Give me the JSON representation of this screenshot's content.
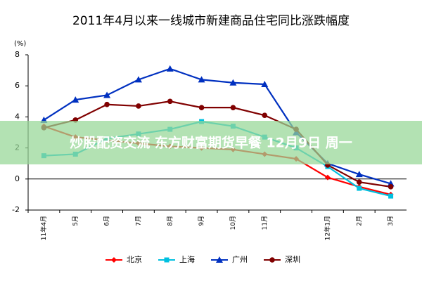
{
  "chart_data": {
    "type": "line",
    "title": "2011年4月以来一线城市新建商品住宅同比涨跌幅度",
    "ylabel": "(%)",
    "categories": [
      "11年4月",
      "5月",
      "6月",
      "7月",
      "8月",
      "9月",
      "10月",
      "11月",
      null,
      "12年1月",
      "2月",
      "3月"
    ],
    "series": [
      {
        "name": "北京",
        "color": "#ff0000",
        "marker": "diamond",
        "values": [
          3.4,
          2.7,
          2.5,
          2.3,
          2.1,
          2.0,
          1.9,
          1.6,
          1.3,
          0.1,
          -0.5,
          -1.0
        ]
      },
      {
        "name": "上海",
        "color": "#00c0e0",
        "marker": "square",
        "values": [
          1.5,
          1.6,
          2.6,
          2.9,
          3.2,
          3.7,
          3.4,
          2.7,
          2.0,
          0.8,
          -0.6,
          -1.1
        ]
      },
      {
        "name": "广州",
        "color": "#0030c0",
        "marker": "triangle",
        "values": [
          3.8,
          5.1,
          5.4,
          6.4,
          7.1,
          6.4,
          6.2,
          6.1,
          3.0,
          1.0,
          0.3,
          -0.3
        ]
      },
      {
        "name": "深圳",
        "color": "#800000",
        "marker": "circle",
        "values": [
          3.3,
          3.8,
          4.8,
          4.7,
          5.0,
          4.6,
          4.6,
          4.1,
          3.2,
          0.9,
          -0.2,
          -0.5
        ]
      }
    ],
    "ylim": [
      -2,
      8
    ],
    "yticks": [
      -2,
      0,
      2,
      4,
      6,
      8
    ],
    "legend": "bottom",
    "overlay_text": "炒股配资交流 东方财富期货早餐 12月9日 周一"
  }
}
